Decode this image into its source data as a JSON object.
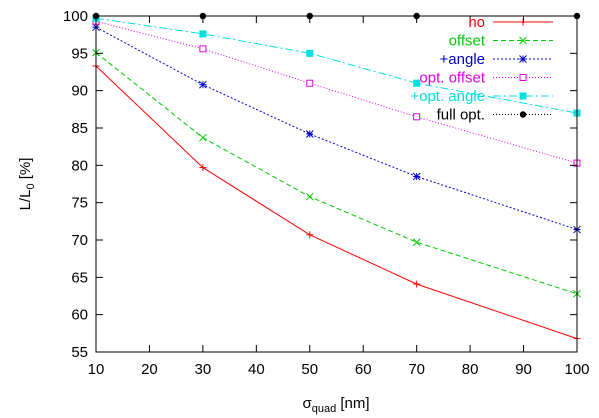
{
  "chart_data": {
    "type": "line",
    "title": "",
    "xlabel": {
      "base": "σ",
      "sub": "quad",
      "suffix": " [nm]"
    },
    "ylabel": {
      "base": "L/L",
      "sub": "0",
      "suffix": " [%]"
    },
    "xlim": [
      10,
      100
    ],
    "ylim": [
      55,
      100
    ],
    "xticks": [
      "10",
      "20",
      "30",
      "40",
      "50",
      "60",
      "70",
      "80",
      "90",
      "100"
    ],
    "yticks": [
      "55",
      "60",
      "65",
      "70",
      "75",
      "80",
      "85",
      "90",
      "95",
      "100"
    ],
    "grid": false,
    "legend_position": "top-right",
    "x": [
      10,
      30,
      50,
      70,
      100
    ],
    "series": [
      {
        "name": "no",
        "color": "#ff0000",
        "marker": "plus",
        "dash": "",
        "values": [
          93.3,
          79.7,
          70.7,
          64.1,
          56.8
        ]
      },
      {
        "name": "offset",
        "color": "#00cc00",
        "marker": "x",
        "dash": "5,3",
        "values": [
          95.1,
          83.7,
          75.8,
          69.7,
          62.8
        ]
      },
      {
        "name": "+angle",
        "color": "#0000cc",
        "marker": "star",
        "dash": "2,2",
        "values": [
          98.5,
          90.8,
          84.2,
          78.5,
          71.4
        ]
      },
      {
        "name": "opt. offset",
        "color": "#e000e0",
        "marker": "open-square",
        "dash": "1,2",
        "values": [
          99.3,
          95.6,
          91.0,
          86.5,
          80.3
        ]
      },
      {
        "name": "+opt. angle",
        "color": "#00e0e0",
        "marker": "filled-square",
        "dash": "8,3,2,3",
        "values": [
          99.7,
          97.6,
          95.0,
          91.0,
          87.0
        ]
      },
      {
        "name": "full opt.",
        "color": "#000000",
        "marker": "filled-circle",
        "dash": "1,2",
        "values": [
          100.0,
          100.0,
          100.0,
          100.0,
          100.0
        ]
      }
    ]
  }
}
